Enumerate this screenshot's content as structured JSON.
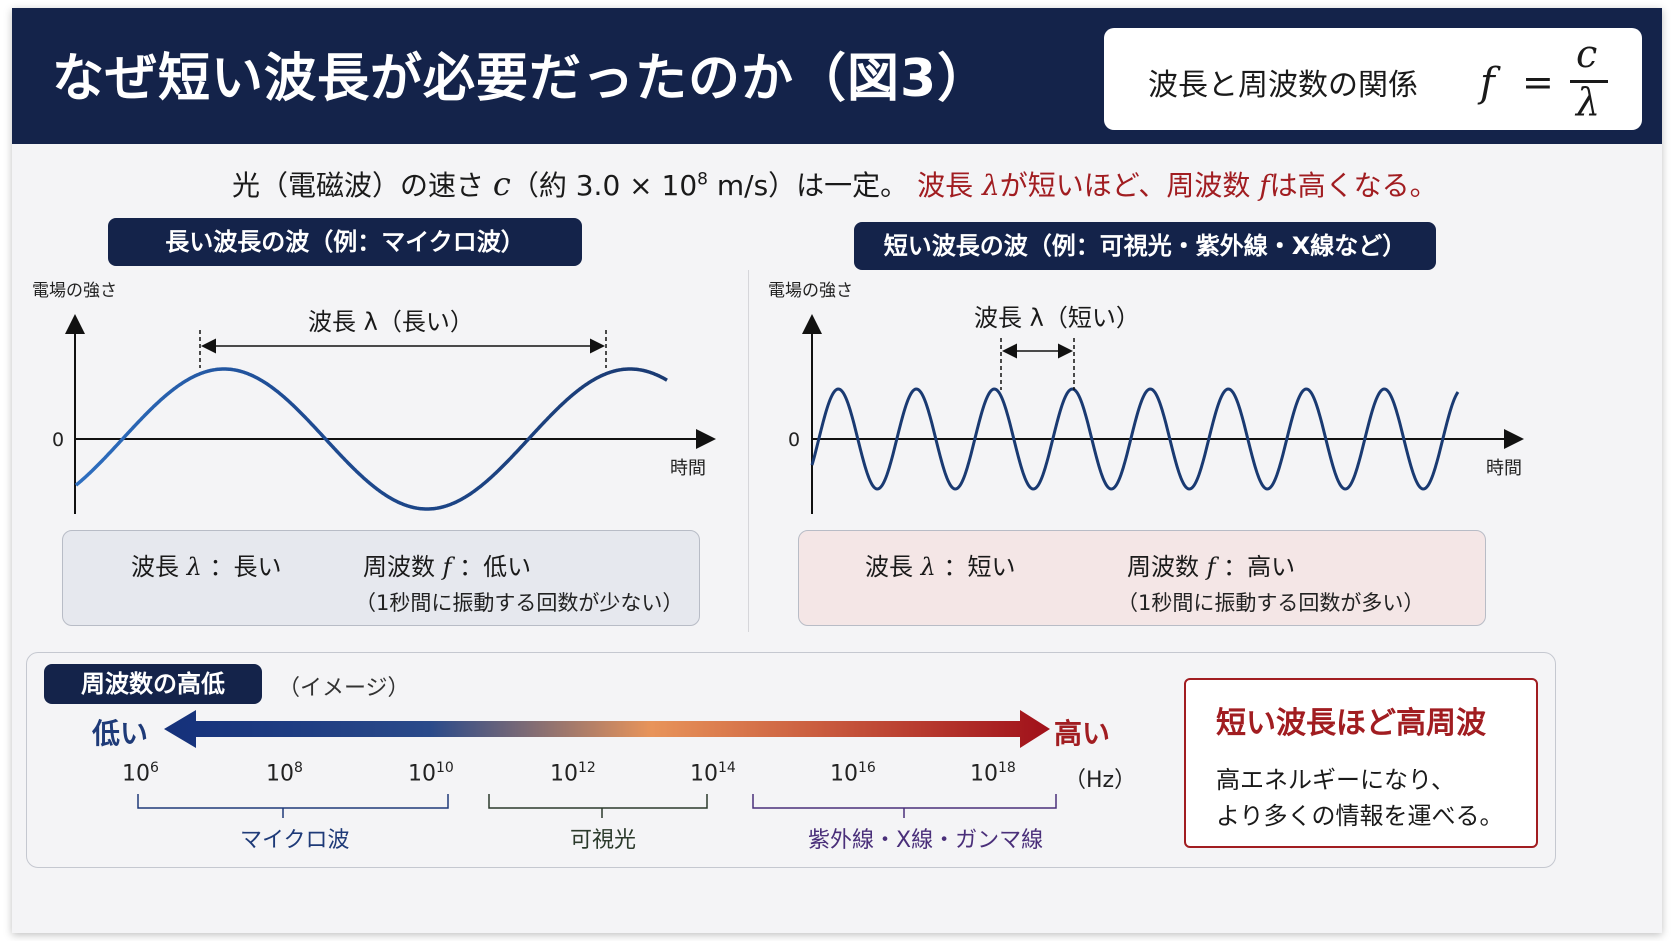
{
  "header": {
    "title": "なぜ短い波長が必要だったのか（図3）",
    "formula_label": "波長と周波数の関係",
    "formula": {
      "lhs": "f",
      "eq": "=",
      "numerator": "c",
      "denominator": "λ"
    }
  },
  "intro": {
    "p1": "光（電磁波）の速さ ",
    "c": "c",
    "p2": "（約 3.0 × 10",
    "exp": "8",
    "p3": " m/s）は一定。",
    "r1": "波長 ",
    "lambda": "λ",
    "r2": "が短いほど、周波数 ",
    "f": "f",
    "r3": "は高くなる。"
  },
  "long_wave": {
    "pill": "長い波長の波（例：マイクロ波）",
    "y_label": "電場の強さ",
    "x_label": "時間",
    "zero": "0",
    "wavelength_label": "波長 λ（長い）",
    "info": {
      "wavelength_text": "波長",
      "wavelength_sym": "λ",
      "wavelength_value": "：長い",
      "frequency_text": "周波数",
      "frequency_sym": "f",
      "frequency_value": "：低い",
      "note": "（1秒間に振動する回数が少ない）"
    }
  },
  "short_wave": {
    "pill": "短い波長の波（例：可視光・紫外線・X線など）",
    "y_label": "電場の強さ",
    "x_label": "時間",
    "zero": "0",
    "wavelength_label": "波長 λ（短い）",
    "info": {
      "wavelength_text": "波長",
      "wavelength_sym": "λ",
      "wavelength_value": "：短い",
      "frequency_text": "周波数",
      "frequency_sym": "f",
      "frequency_value": "：高い",
      "note": "（1秒間に振動する回数が多い）"
    }
  },
  "frequency_scale": {
    "pill": "周波数の高低",
    "note": "（イメージ）",
    "low": "低い",
    "high": "高い",
    "ticks": [
      {
        "base": "10",
        "exp": "6"
      },
      {
        "base": "10",
        "exp": "8"
      },
      {
        "base": "10",
        "exp": "10"
      },
      {
        "base": "10",
        "exp": "12"
      },
      {
        "base": "10",
        "exp": "14"
      },
      {
        "base": "10",
        "exp": "16"
      },
      {
        "base": "10",
        "exp": "18"
      }
    ],
    "unit": "（Hz）",
    "bands": [
      {
        "label": "マイクロ波",
        "color": "#1e3a78"
      },
      {
        "label": "可視光",
        "color": "#2b3a2b"
      },
      {
        "label": "紫外線・X線・ガンマ線",
        "color": "#4a2f7a"
      }
    ],
    "colors": {
      "low": "#14307a",
      "mid": "#e8945a",
      "high": "#a0101a"
    }
  },
  "conclusion": {
    "heading": "短い波長ほど高周波",
    "line1": "高エネルギーになり、",
    "line2": "より多くの情報を運べる。"
  }
}
